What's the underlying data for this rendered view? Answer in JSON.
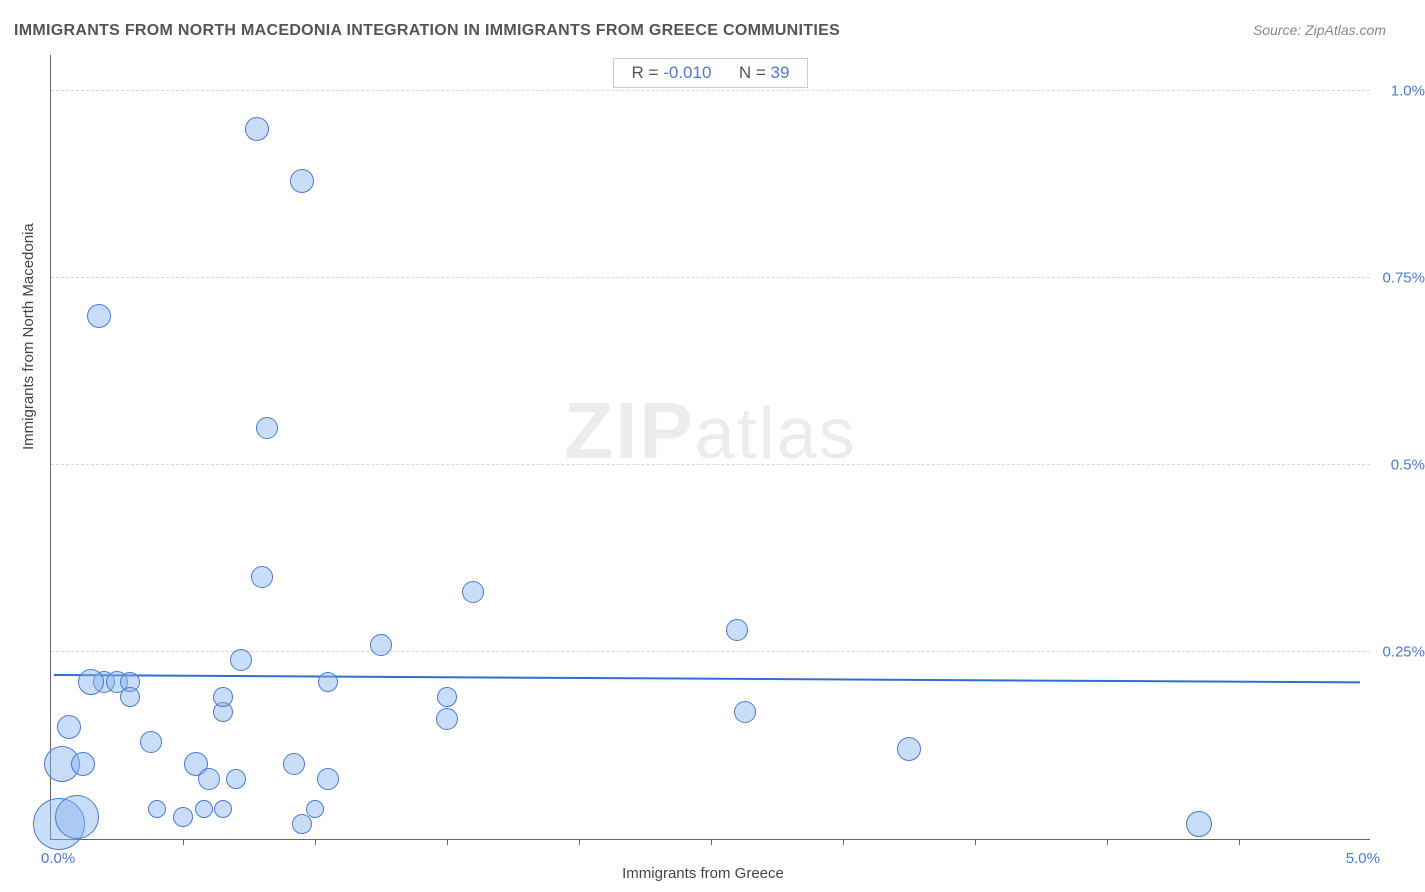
{
  "title": "IMMIGRANTS FROM NORTH MACEDONIA INTEGRATION IN IMMIGRANTS FROM GREECE COMMUNITIES",
  "source": "Source: ZipAtlas.com",
  "watermark_zip": "ZIP",
  "watermark_atlas": "atlas",
  "chart": {
    "type": "scatter",
    "xlabel": "Immigrants from Greece",
    "ylabel": "Immigrants from North Macedonia",
    "xlim": [
      0.0,
      5.0
    ],
    "ylim": [
      0.0,
      1.05
    ],
    "xtick_positions": [
      0.5,
      1.0,
      1.5,
      2.0,
      2.5,
      3.0,
      3.5,
      4.0,
      4.5
    ],
    "ytick_positions": [
      0.25,
      0.5,
      0.75,
      1.0
    ],
    "ytick_labels": [
      "0.25%",
      "0.5%",
      "0.75%",
      "1.0%"
    ],
    "x0_label": "0.0%",
    "xmax_label": "5.0%",
    "background_color": "#ffffff",
    "grid_color": "#d8d8d8",
    "axis_color": "#666666",
    "axis_value_color": "#4a7bd0",
    "label_color": "#444444",
    "label_fontsize": 15,
    "bubble_fill": "rgba(135,180,240,0.45)",
    "bubble_stroke": "#4a7bd0",
    "trendline_color": "#2f6fd0",
    "trendline": {
      "y_at_x0": 0.218,
      "y_at_xmax": 0.208
    },
    "stats": {
      "r_label": "R =",
      "r_value": "-0.010",
      "n_label": "N =",
      "n_value": "39"
    },
    "points": [
      {
        "x": 0.03,
        "y": 0.02,
        "r": 26
      },
      {
        "x": 0.1,
        "y": 0.03,
        "r": 22
      },
      {
        "x": 0.04,
        "y": 0.1,
        "r": 18
      },
      {
        "x": 0.12,
        "y": 0.1,
        "r": 12
      },
      {
        "x": 0.07,
        "y": 0.15,
        "r": 12
      },
      {
        "x": 0.2,
        "y": 0.21,
        "r": 11
      },
      {
        "x": 0.25,
        "y": 0.21,
        "r": 11
      },
      {
        "x": 0.3,
        "y": 0.21,
        "r": 10
      },
      {
        "x": 0.15,
        "y": 0.21,
        "r": 13
      },
      {
        "x": 0.3,
        "y": 0.19,
        "r": 10
      },
      {
        "x": 0.18,
        "y": 0.7,
        "r": 12
      },
      {
        "x": 0.38,
        "y": 0.13,
        "r": 11
      },
      {
        "x": 0.55,
        "y": 0.1,
        "r": 12
      },
      {
        "x": 0.5,
        "y": 0.03,
        "r": 10
      },
      {
        "x": 0.58,
        "y": 0.04,
        "r": 9
      },
      {
        "x": 0.6,
        "y": 0.08,
        "r": 11
      },
      {
        "x": 0.7,
        "y": 0.08,
        "r": 10
      },
      {
        "x": 0.65,
        "y": 0.04,
        "r": 9
      },
      {
        "x": 0.65,
        "y": 0.17,
        "r": 10
      },
      {
        "x": 0.72,
        "y": 0.24,
        "r": 11
      },
      {
        "x": 0.65,
        "y": 0.19,
        "r": 10
      },
      {
        "x": 0.8,
        "y": 0.35,
        "r": 11
      },
      {
        "x": 0.82,
        "y": 0.55,
        "r": 11
      },
      {
        "x": 0.78,
        "y": 0.95,
        "r": 12
      },
      {
        "x": 0.95,
        "y": 0.88,
        "r": 12
      },
      {
        "x": 0.92,
        "y": 0.1,
        "r": 11
      },
      {
        "x": 0.95,
        "y": 0.02,
        "r": 10
      },
      {
        "x": 1.0,
        "y": 0.04,
        "r": 9
      },
      {
        "x": 1.05,
        "y": 0.08,
        "r": 11
      },
      {
        "x": 1.05,
        "y": 0.21,
        "r": 10
      },
      {
        "x": 1.25,
        "y": 0.26,
        "r": 11
      },
      {
        "x": 1.5,
        "y": 0.16,
        "r": 11
      },
      {
        "x": 1.6,
        "y": 0.33,
        "r": 11
      },
      {
        "x": 1.5,
        "y": 0.19,
        "r": 10
      },
      {
        "x": 2.6,
        "y": 0.28,
        "r": 11
      },
      {
        "x": 2.63,
        "y": 0.17,
        "r": 11
      },
      {
        "x": 3.25,
        "y": 0.12,
        "r": 12
      },
      {
        "x": 4.35,
        "y": 0.02,
        "r": 13
      },
      {
        "x": 0.4,
        "y": 0.04,
        "r": 9
      }
    ]
  }
}
